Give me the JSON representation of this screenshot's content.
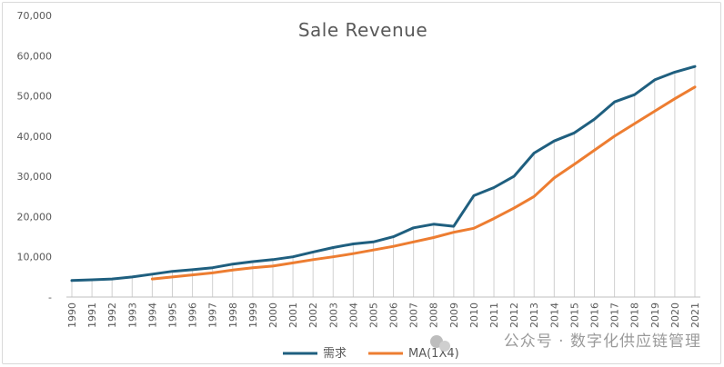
{
  "watermark": "公众号 · 数字化供应链管理",
  "chart_data": {
    "type": "line",
    "title": "Sale Revenue",
    "xlabel": "",
    "ylabel": "",
    "ylim": [
      0,
      70000
    ],
    "y_ticks": [
      0,
      10000,
      20000,
      30000,
      40000,
      50000,
      60000,
      70000
    ],
    "y_tick_labels": [
      "-",
      "10,000",
      "20,000",
      "30,000",
      "40,000",
      "50,000",
      "60,000",
      "70,000"
    ],
    "grid": "vertical drop lines at each category",
    "legend_position": "bottom",
    "categories": [
      "1990",
      "1991",
      "1992",
      "1993",
      "1994",
      "1995",
      "1996",
      "1997",
      "1998",
      "1999",
      "2000",
      "2001",
      "2002",
      "2003",
      "2004",
      "2005",
      "2006",
      "2007",
      "2008",
      "2009",
      "2010",
      "2011",
      "2012",
      "2013",
      "2014",
      "2015",
      "2016",
      "2017",
      "2018",
      "2019",
      "2020",
      "2021"
    ],
    "series": [
      {
        "name": "需求",
        "color": "#1f5f7f",
        "values": [
          4100,
          4300,
          4500,
          5000,
          5700,
          6400,
          6800,
          7300,
          8200,
          8800,
          9300,
          10000,
          11200,
          12300,
          13200,
          13700,
          15000,
          17200,
          18100,
          17600,
          25200,
          27200,
          30000,
          35800,
          38800,
          40800,
          44200,
          48500,
          50300,
          54000,
          55900,
          57300
        ]
      },
      {
        "name": "MA(1X4)",
        "color": "#ed7d31",
        "values": [
          null,
          null,
          null,
          null,
          4500,
          5000,
          5500,
          6000,
          6700,
          7300,
          7700,
          8500,
          9300,
          10000,
          10800,
          11700,
          12600,
          13700,
          14800,
          16100,
          17100,
          19500,
          22100,
          25000,
          29600,
          33000,
          36500,
          40000,
          43100,
          46200,
          49300,
          52200
        ]
      }
    ]
  }
}
